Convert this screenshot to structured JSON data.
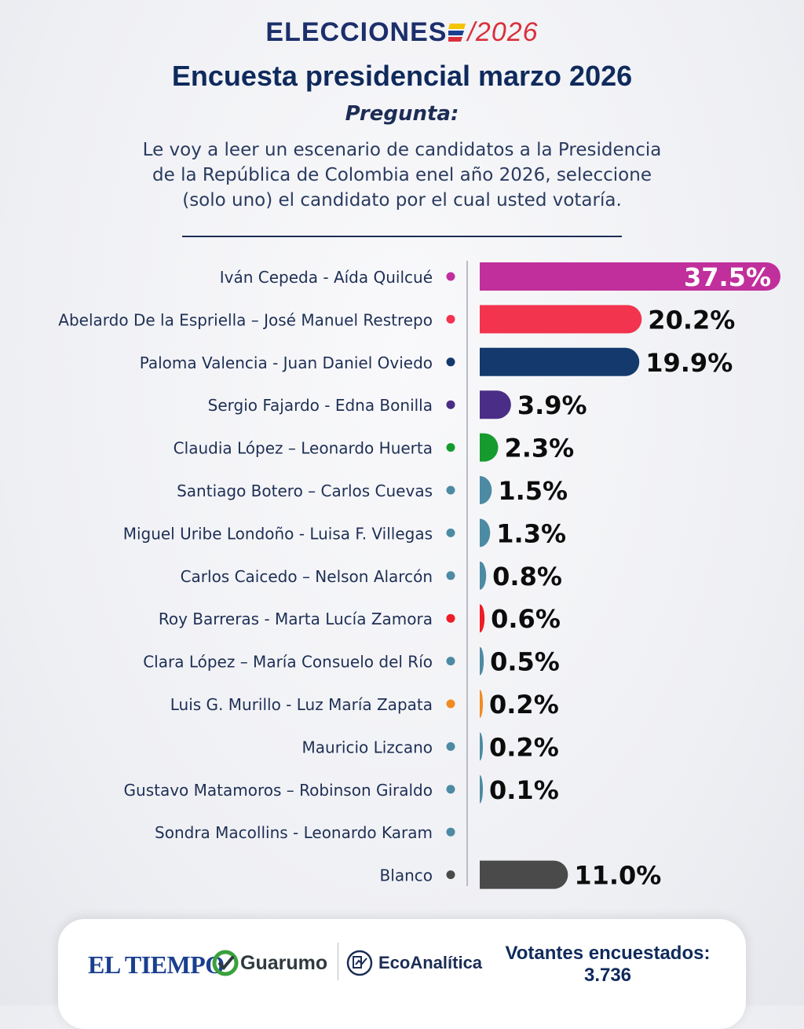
{
  "header": {
    "brand_word": "ELECCIONES",
    "brand_year": "2026",
    "title": "Encuesta presidencial marzo 2026",
    "question_label": "Pregunta:",
    "question_lines": [
      "Le voy a leer un escenario de candidatos a la Presidencia",
      "de la República de Colombia enel año 2026, seleccione",
      "(solo uno) el candidato por el cual usted votaría."
    ]
  },
  "chart_data": {
    "type": "bar",
    "orientation": "horizontal",
    "unit": "%",
    "xlim": [
      0,
      37.5
    ],
    "categories": [
      "Iván Cepeda - Aída Quilcué",
      "Abelardo De la Espriella – José Manuel Restrepo",
      "Paloma Valencia - Juan Daniel Oviedo",
      "Sergio Fajardo - Edna Bonilla",
      "Claudia López – Leonardo Huerta",
      "Santiago Botero – Carlos Cuevas",
      "Miguel Uribe Londoño - Luisa F. Villegas",
      "Carlos Caicedo – Nelson Alarcón",
      "Roy Barreras - Marta Lucía Zamora",
      "Clara López – María Consuelo del Río",
      "Luis G. Murillo - Luz María Zapata",
      "Mauricio Lizcano",
      "Gustavo Matamoros – Robinson Giraldo",
      "Sondra Macollins - Leonardo Karam",
      "Blanco"
    ],
    "values": [
      37.5,
      20.2,
      19.9,
      3.9,
      2.3,
      1.5,
      1.3,
      0.8,
      0.6,
      0.5,
      0.2,
      0.2,
      0.1,
      null,
      11.0
    ],
    "value_labels": [
      "37.5%",
      "20.2%",
      "19.9%",
      "3.9%",
      "2.3%",
      "1.5%",
      "1.3%",
      "0.8%",
      "0.6%",
      "0.5%",
      "0.2%",
      "0.2%",
      "0.1%",
      "",
      "11.0%"
    ],
    "colors": [
      "#c12f9c",
      "#f2344f",
      "#143a6d",
      "#4a2d86",
      "#169b2e",
      "#4d8aa3",
      "#4d8aa3",
      "#4d8aa3",
      "#ee1c25",
      "#4d8aa3",
      "#f18a1f",
      "#4d8aa3",
      "#4d8aa3",
      "#4d8aa3",
      "#4a4a4a"
    ],
    "label_inside_first": true
  },
  "footer": {
    "logo_tiempo": "EL TIEMPO",
    "logo_guarumo": "Guarumo",
    "logo_eco": "EcoAnalítica",
    "voters_label": "Votantes encuestados:",
    "voters_value": "3.736"
  }
}
